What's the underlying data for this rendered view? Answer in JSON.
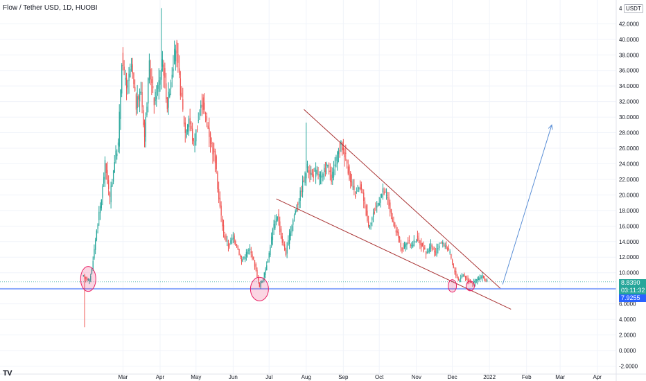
{
  "header": {
    "title": "Flow / Tether USD, 1D, HUOBI",
    "currency_button": "USDT",
    "price_axis_mark": "4"
  },
  "watermark": "TV",
  "price_badges": {
    "last_price": "8.8390",
    "countdown": "03:11:32",
    "level_price": "7.9255"
  },
  "colors": {
    "up": "#26a69a",
    "down": "#ef5350",
    "trendline": "#a83232",
    "support": "#2962ff",
    "projection": "#5b8fd6",
    "highlight": "#e91e63"
  },
  "chart_data": {
    "type": "candlestick",
    "title": "Flow / Tether USD, 1D, HUOBI",
    "y_ticks": [
      "-2.0000",
      "0.0000",
      "2.0000",
      "4.0000",
      "6.0000",
      "8.0000",
      "10.0000",
      "12.0000",
      "14.0000",
      "16.0000",
      "18.0000",
      "20.0000",
      "22.0000",
      "24.0000",
      "26.0000",
      "28.0000",
      "30.0000",
      "32.0000",
      "34.0000",
      "36.0000",
      "38.0000",
      "40.0000",
      "42.0000"
    ],
    "x_ticks": [
      "Mar",
      "Apr",
      "May",
      "Jun",
      "Jul",
      "Aug",
      "Sep",
      "Oct",
      "Nov",
      "Dec",
      "2022",
      "Feb",
      "Mar",
      "Apr"
    ],
    "ylim": [
      -2.5,
      44
    ],
    "price_path": [
      [
        "2021-01-27",
        9.5
      ],
      [
        "2021-02-01",
        9.0
      ],
      [
        "2021-02-03",
        10.5
      ],
      [
        "2021-02-07",
        15.5
      ],
      [
        "2021-02-11",
        19.5
      ],
      [
        "2021-02-14",
        24.0
      ],
      [
        "2021-02-18",
        19.5
      ],
      [
        "2021-02-22",
        24.5
      ],
      [
        "2021-02-25",
        26.5
      ],
      [
        "2021-02-28",
        37.5
      ],
      [
        "2021-03-04",
        33.5
      ],
      [
        "2021-03-08",
        36.5
      ],
      [
        "2021-03-12",
        31.5
      ],
      [
        "2021-03-16",
        33.5
      ],
      [
        "2021-03-19",
        27.5
      ],
      [
        "2021-03-23",
        36.5
      ],
      [
        "2021-03-27",
        32.0
      ],
      [
        "2021-03-31",
        34.5
      ],
      [
        "2021-04-03",
        37.5
      ],
      [
        "2021-04-07",
        31.5
      ],
      [
        "2021-04-11",
        36.0
      ],
      [
        "2021-04-14",
        39.0
      ],
      [
        "2021-04-18",
        33.5
      ],
      [
        "2021-04-22",
        28.0
      ],
      [
        "2021-04-25",
        30.0
      ],
      [
        "2021-04-29",
        26.5
      ],
      [
        "2021-05-02",
        29.0
      ],
      [
        "2021-05-06",
        32.0
      ],
      [
        "2021-05-10",
        29.5
      ],
      [
        "2021-05-13",
        27.0
      ],
      [
        "2021-05-17",
        24.5
      ],
      [
        "2021-05-20",
        19.5
      ],
      [
        "2021-05-24",
        15.0
      ],
      [
        "2021-05-28",
        13.5
      ],
      [
        "2021-06-01",
        14.5
      ],
      [
        "2021-06-04",
        13.5
      ],
      [
        "2021-06-08",
        11.5
      ],
      [
        "2021-06-12",
        12.5
      ],
      [
        "2021-06-15",
        13.0
      ],
      [
        "2021-06-19",
        11.0
      ],
      [
        "2021-06-23",
        8.2
      ],
      [
        "2021-06-27",
        9.8
      ],
      [
        "2021-07-01",
        12.5
      ],
      [
        "2021-07-04",
        15.5
      ],
      [
        "2021-07-08",
        17.5
      ],
      [
        "2021-07-11",
        14.5
      ],
      [
        "2021-07-15",
        12.5
      ],
      [
        "2021-07-19",
        15.5
      ],
      [
        "2021-07-22",
        17.5
      ],
      [
        "2021-07-26",
        19.5
      ],
      [
        "2021-07-29",
        21.5
      ],
      [
        "2021-08-02",
        23.5
      ],
      [
        "2021-08-06",
        22.5
      ],
      [
        "2021-08-10",
        23.0
      ],
      [
        "2021-08-14",
        22.0
      ],
      [
        "2021-08-18",
        24.0
      ],
      [
        "2021-08-22",
        22.0
      ],
      [
        "2021-08-26",
        24.5
      ],
      [
        "2021-08-30",
        26.5
      ],
      [
        "2021-09-03",
        25.0
      ],
      [
        "2021-09-07",
        21.5
      ],
      [
        "2021-09-11",
        20.0
      ],
      [
        "2021-09-15",
        21.0
      ],
      [
        "2021-09-18",
        19.5
      ],
      [
        "2021-09-22",
        16.0
      ],
      [
        "2021-09-26",
        17.5
      ],
      [
        "2021-09-30",
        19.0
      ],
      [
        "2021-10-04",
        20.5
      ],
      [
        "2021-10-08",
        19.5
      ],
      [
        "2021-10-12",
        16.5
      ],
      [
        "2021-10-16",
        15.0
      ],
      [
        "2021-10-20",
        13.0
      ],
      [
        "2021-10-24",
        14.0
      ],
      [
        "2021-10-28",
        13.5
      ],
      [
        "2021-11-01",
        14.5
      ],
      [
        "2021-11-05",
        13.5
      ],
      [
        "2021-11-09",
        12.5
      ],
      [
        "2021-11-13",
        13.5
      ],
      [
        "2021-11-17",
        12.5
      ],
      [
        "2021-11-21",
        14.0
      ],
      [
        "2021-11-25",
        13.5
      ],
      [
        "2021-11-29",
        12.5
      ],
      [
        "2021-12-02",
        10.5
      ],
      [
        "2021-12-06",
        9.0
      ],
      [
        "2021-12-10",
        9.8
      ],
      [
        "2021-12-14",
        9.0
      ],
      [
        "2021-12-18",
        8.7
      ],
      [
        "2021-12-22",
        9.2
      ],
      [
        "2021-12-26",
        9.5
      ],
      [
        "2021-12-30",
        8.84
      ]
    ],
    "extreme_wicks": [
      [
        "2021-01-28",
        3.0
      ],
      [
        "2021-04-02",
        44.0
      ],
      [
        "2021-08-01",
        29.3
      ]
    ],
    "horizontal_level": 7.9255,
    "last_price": 8.839,
    "upper_trendline": [
      [
        "2021-07-30",
        31.0
      ],
      [
        "2022-01-10",
        8.0
      ]
    ],
    "lower_trendline": [
      [
        "2021-07-07",
        19.5
      ],
      [
        "2022-01-19",
        5.3
      ]
    ],
    "projection_arrow": [
      [
        "2022-01-12",
        8.5
      ],
      [
        "2022-02-22",
        29.0
      ]
    ],
    "highlight_ellipses": [
      [
        "2021-01-31",
        9.2
      ],
      [
        "2021-06-23",
        7.9
      ],
      [
        "2021-12-01",
        8.3
      ],
      [
        "2021-12-16",
        8.3
      ]
    ],
    "grid": true
  }
}
